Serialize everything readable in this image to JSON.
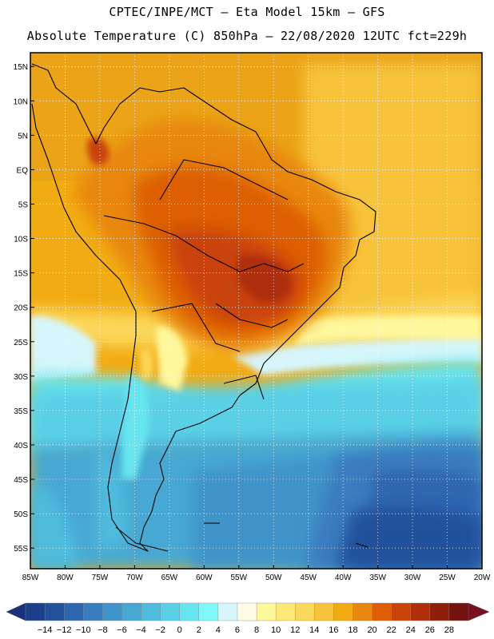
{
  "header": {
    "line1": "CPTEC/INPE/MCT –  Eta Model 15km – GFS",
    "line2": "Absolute Temperature (C) 850hPa – 22/08/2020 12UTC fct=229h"
  },
  "map": {
    "lat_ticks": [
      "15N",
      "10N",
      "5N",
      "EQ",
      "5S",
      "10S",
      "15S",
      "20S",
      "25S",
      "30S",
      "35S",
      "40S",
      "45S",
      "50S",
      "55S"
    ],
    "lon_ticks": [
      "85W",
      "80W",
      "75W",
      "70W",
      "65W",
      "60W",
      "55W",
      "50W",
      "45W",
      "40W",
      "35W",
      "30W",
      "25W",
      "20W"
    ],
    "lat_range": [
      17,
      -58
    ],
    "lon_range": [
      -85,
      -20
    ],
    "gridlines": true
  },
  "colorbar": {
    "labels": [
      "-14",
      "-12",
      "-10",
      "-8",
      "-6",
      "-4",
      "-2",
      "0",
      "2",
      "4",
      "6",
      "8",
      "10",
      "12",
      "14",
      "16",
      "18",
      "20",
      "22",
      "24",
      "26",
      "28"
    ],
    "colors": [
      "#1e3f8c",
      "#23519c",
      "#2f66b0",
      "#3a7dbf",
      "#3f94c9",
      "#46a8d3",
      "#4fbcdd",
      "#5ad0e6",
      "#68e6ef",
      "#7ef8f8",
      "#d6f6fb",
      "#fffbe4",
      "#fff79b",
      "#fde777",
      "#fbd75a",
      "#f7c33a",
      "#f2ac13",
      "#e8870e",
      "#dd5e05",
      "#c9430a",
      "#ae2f0a",
      "#8f1f0a",
      "#73120e"
    ],
    "left_arrow_color": "#1b2f7a",
    "right_arrow_color": "#7a0f1f"
  }
}
